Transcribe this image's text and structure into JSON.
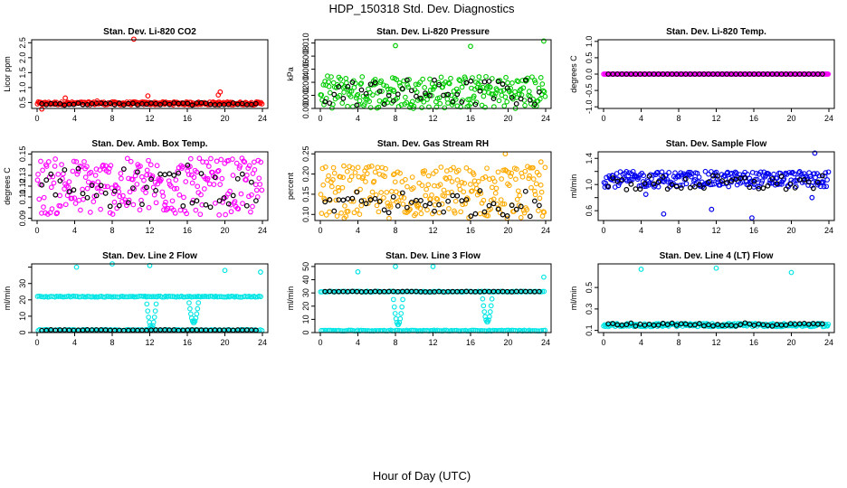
{
  "figure": {
    "title": "HDP_150318  Std. Dev. Diagnostics",
    "xlabel": "Hour of Day (UTC)"
  },
  "chart_data": [
    {
      "type": "scatter",
      "title": "Stan. Dev. Li-820 CO2",
      "ylabel": "Licor ppm",
      "xlim": [
        0,
        24
      ],
      "ylim": [
        0.3,
        2.6
      ],
      "xticks": [
        0,
        4,
        8,
        12,
        16,
        20,
        24
      ],
      "yticks": [
        0.5,
        1.0,
        1.5,
        2.0,
        2.5
      ],
      "ytick_labels": [
        "0.5",
        "1.0",
        "1.5",
        "2.0",
        "2.5"
      ],
      "color": "#ff0000",
      "base": 0.47,
      "spread": 0.05,
      "sign": 0,
      "outliers": [
        [
          0.5,
          0.28
        ],
        [
          3.0,
          0.65
        ],
        [
          6.4,
          0.55
        ],
        [
          10.3,
          2.62
        ],
        [
          11.8,
          0.72
        ],
        [
          19.3,
          0.75
        ],
        [
          19.5,
          0.85
        ]
      ],
      "black_base": 0.45,
      "black_spread": 0.04
    },
    {
      "type": "scatter",
      "title": "Stan. Dev. Li-820 Pressure",
      "ylabel": "kPa",
      "xlim": [
        0,
        24
      ],
      "ylim": [
        0,
        0.0105
      ],
      "xticks": [
        0,
        4,
        8,
        12,
        16,
        20,
        24
      ],
      "yticks": [
        0,
        0.002,
        0.004,
        0.006,
        0.008,
        0.01
      ],
      "ytick_labels": [
        "0.000",
        "0.002",
        "0.004",
        "0.006",
        "0.008",
        "0.010"
      ],
      "color": "#00cc00",
      "band": [
        0,
        0.005
      ],
      "sign": 0,
      "outliers": [
        [
          8.0,
          0.0096
        ],
        [
          16.0,
          0.0095
        ],
        [
          23.8,
          0.0103
        ]
      ],
      "black_band": [
        0.0003,
        0.0045
      ]
    },
    {
      "type": "scatter",
      "title": "Stan. Dev. Li-820 Temp.",
      "ylabel": "degrees C",
      "xlim": [
        0,
        24
      ],
      "ylim": [
        -1.05,
        1.05
      ],
      "xticks": [
        0,
        4,
        8,
        12,
        16,
        20,
        24
      ],
      "yticks": [
        -1.0,
        -0.5,
        0.0,
        0.5,
        1.0
      ],
      "ytick_labels": [
        "-1.0",
        "-0.5",
        "0.0",
        "0.5",
        "1.0"
      ],
      "color": "#ff00ff",
      "base": 0.0,
      "spread": 0.0,
      "sign": 0,
      "outliers": [],
      "black_base": 0.0,
      "black_spread": 0.0
    },
    {
      "type": "scatter",
      "title": "Stan. Dev. Amb. Box Temp.",
      "ylabel": "degrees C",
      "xlim": [
        0,
        24
      ],
      "ylim": [
        0.088,
        0.152
      ],
      "xticks": [
        0,
        4,
        8,
        12,
        16,
        20,
        24
      ],
      "yticks": [
        0.09,
        0.1,
        0.11,
        0.12,
        0.13,
        0.14,
        0.15
      ],
      "ytick_labels": [
        "0.09",
        "",
        "0.11",
        "0.12",
        "0.13",
        "",
        "0.15"
      ],
      "color": "#ff00ff",
      "band": [
        0.093,
        0.146
      ],
      "sign": 0,
      "outliers": [],
      "black_band": [
        0.1,
        0.14
      ]
    },
    {
      "type": "scatter",
      "title": "Stan. Dev. Gas Stream RH",
      "ylabel": "percent",
      "xlim": [
        0,
        24
      ],
      "ylim": [
        0.085,
        0.255
      ],
      "xticks": [
        0,
        4,
        8,
        12,
        16,
        20,
        24
      ],
      "yticks": [
        0.1,
        0.15,
        0.2,
        0.25
      ],
      "ytick_labels": [
        "0.10",
        "0.15",
        "0.20",
        "0.25"
      ],
      "color": "#ffaa00",
      "band": [
        0.09,
        0.22
      ],
      "sign": 0,
      "outliers": [
        [
          19.7,
          0.25
        ],
        [
          23.5,
          0.23
        ],
        [
          2.5,
          0.22
        ]
      ],
      "black_band": [
        0.095,
        0.16
      ]
    },
    {
      "type": "scatter",
      "title": "Stan. Dev. Sample Flow",
      "ylabel": "ml/min",
      "xlim": [
        0,
        24
      ],
      "ylim": [
        0.45,
        1.5
      ],
      "xticks": [
        0,
        4,
        8,
        12,
        16,
        20,
        24
      ],
      "yticks": [
        0.6,
        0.8,
        1.0,
        1.2,
        1.4
      ],
      "ytick_labels": [
        "0.6",
        "1.0",
        "1.4"
      ],
      "ytick_label_values": [
        0.6,
        1.0,
        1.4
      ],
      "color": "#0000ee",
      "base": 1.08,
      "spread": 0.12,
      "sign": 0,
      "outliers": [
        [
          6.4,
          0.55
        ],
        [
          11.5,
          0.62
        ],
        [
          15.8,
          0.49
        ],
        [
          22.5,
          1.48
        ],
        [
          4.5,
          0.85
        ],
        [
          22.2,
          0.8
        ]
      ],
      "black_base": 1.02,
      "black_spread": 0.12
    },
    {
      "type": "scatter",
      "title": "Stan. Dev. Line 2 Flow",
      "ylabel": "ml/min",
      "xlim": [
        0,
        24
      ],
      "ylim": [
        0,
        42
      ],
      "xticks": [
        0,
        4,
        8,
        12,
        16,
        20,
        24
      ],
      "yticks": [
        0,
        10,
        20,
        30,
        40
      ],
      "ytick_labels": [
        "0",
        "10",
        "20",
        "30"
      ],
      "ytick_label_values": [
        0,
        10,
        20,
        30
      ],
      "color": "#00e5e5",
      "levels": [
        22,
        1.5
      ],
      "outliers": [
        [
          4.2,
          40
        ],
        [
          8.0,
          42
        ],
        [
          12.0,
          41
        ],
        [
          20.0,
          38
        ],
        [
          23.8,
          37
        ]
      ],
      "dips": [
        [
          12.2,
          22,
          3
        ],
        [
          16.7,
          22,
          6
        ]
      ],
      "black_level": 1.5
    },
    {
      "type": "scatter",
      "title": "Stan. Dev. Line 3 Flow",
      "ylabel": "ml/min",
      "xlim": [
        0,
        24
      ],
      "ylim": [
        0,
        52
      ],
      "xticks": [
        0,
        4,
        8,
        12,
        16,
        20,
        24
      ],
      "yticks": [
        0,
        10,
        20,
        30,
        40,
        50
      ],
      "ytick_labels": [
        "0",
        "10",
        "20",
        "30",
        "40",
        "50"
      ],
      "color": "#00e5e5",
      "levels": [
        31,
        1.5
      ],
      "outliers": [
        [
          4.0,
          46
        ],
        [
          8.0,
          50
        ],
        [
          12.0,
          50
        ],
        [
          23.8,
          42
        ]
      ],
      "dips": [
        [
          8.3,
          31,
          6
        ],
        [
          17.8,
          31,
          8
        ]
      ],
      "black_level": 31
    },
    {
      "type": "scatter",
      "title": "Stan. Dev. Line 4 (LT) Flow",
      "ylabel": "ml/min",
      "xlim": [
        0,
        24
      ],
      "ylim": [
        0.08,
        0.72
      ],
      "xticks": [
        0,
        4,
        8,
        12,
        16,
        20,
        24
      ],
      "yticks": [
        0.1,
        0.3,
        0.5
      ],
      "ytick_labels": [
        "0.1",
        "0.3",
        "0.5"
      ],
      "color": "#00e5e5",
      "base": 0.15,
      "spread": 0.015,
      "sign": 0,
      "outliers": [
        [
          4.0,
          0.67
        ],
        [
          12.0,
          0.68
        ],
        [
          20.0,
          0.64
        ]
      ],
      "black_base": 0.155,
      "black_spread": 0.015
    }
  ]
}
